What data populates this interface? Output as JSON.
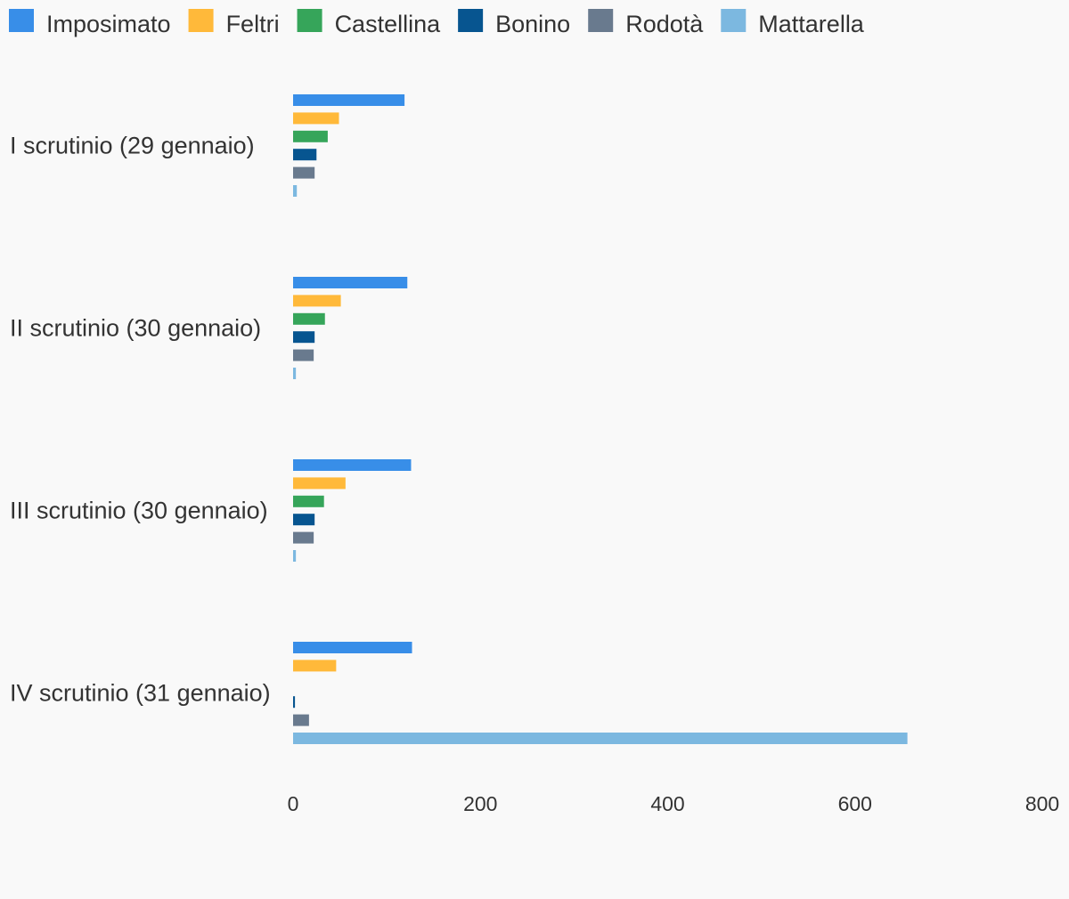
{
  "chart_data": {
    "type": "bar",
    "orientation": "horizontal",
    "categories": [
      "I scrutinio (29 gennaio)",
      "II scrutinio (30 gennaio)",
      "III scrutinio (30 gennaio)",
      "IV scrutinio (31 gennaio)"
    ],
    "series": [
      {
        "name": "Imposimato",
        "color": "#388ee8",
        "values": [
          119,
          122,
          126,
          127
        ]
      },
      {
        "name": "Feltri",
        "color": "#ffb93a",
        "values": [
          49,
          51,
          56,
          46
        ]
      },
      {
        "name": "Castellina",
        "color": "#36a55a",
        "values": [
          37,
          34,
          33,
          0
        ]
      },
      {
        "name": "Bonino",
        "color": "#075590",
        "values": [
          25,
          23,
          23,
          2
        ]
      },
      {
        "name": "Rodotà",
        "color": "#697a8e",
        "values": [
          23,
          22,
          22,
          17
        ]
      },
      {
        "name": "Mattarella",
        "color": "#7cb8e0",
        "values": [
          4,
          3,
          3,
          656
        ]
      }
    ],
    "xlim": [
      0,
      800
    ],
    "xticks": [
      "0",
      "200",
      "400",
      "600",
      "800"
    ],
    "grid": false,
    "legend_position": "top-left",
    "title": "",
    "xlabel": "",
    "ylabel": ""
  }
}
